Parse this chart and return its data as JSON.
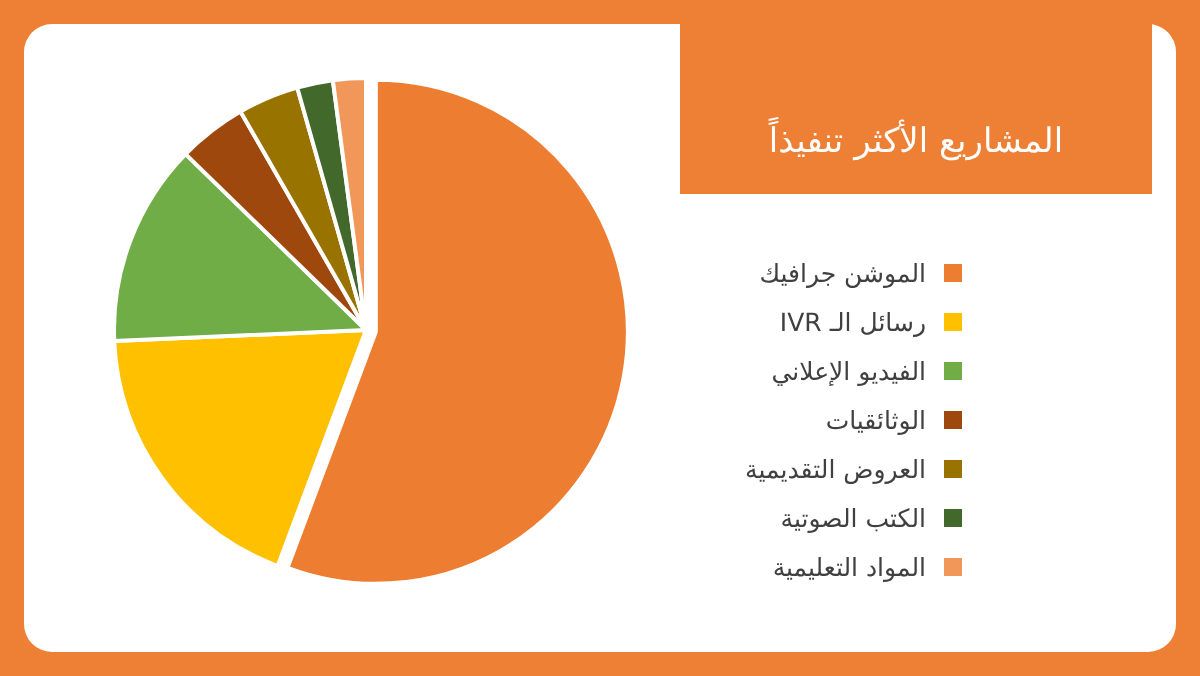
{
  "chart_data": {
    "type": "pie",
    "title": "المشاريع الأكثر تنفيذاً",
    "categories": [
      "الموشن جرافيك",
      "رسائل الـ IVR",
      "الفيديو الإعلاني",
      "الوثائقيات",
      "العروض التقديمية",
      "الكتب الصوتية",
      "المواد التعليمية"
    ],
    "values": [
      55.7,
      18.6,
      13,
      4.4,
      3.9,
      2.3,
      2.1
    ],
    "colors": [
      "#ed7d31",
      "#ffc000",
      "#70ad47",
      "#9e480e",
      "#997300",
      "#43682b",
      "#f1975a"
    ],
    "legend": "right"
  }
}
